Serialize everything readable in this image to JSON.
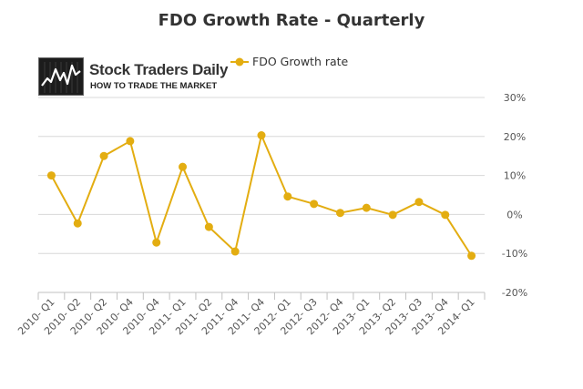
{
  "title": "FDO Growth Rate - Quarterly",
  "logo": {
    "name": "Stock Traders Daily",
    "tagline": "HOW TO TRADE THE MARKET",
    "icon": "chart-line-logo-icon"
  },
  "colors": {
    "series": "#e3ad11",
    "grid": "#d8d8d8",
    "axis_text": "#555555"
  },
  "chart_data": {
    "type": "line",
    "title": "FDO Growth Rate - Quarterly",
    "xlabel": "",
    "ylabel": "",
    "y_axis_side": "right",
    "ylim": [
      -20,
      30
    ],
    "yticks": [
      30,
      20,
      10,
      0,
      -10,
      -20
    ],
    "ytick_labels": [
      "30%",
      "20%",
      "10%",
      "0%",
      "-10%",
      "-20%"
    ],
    "grid": true,
    "legend_position": "top-center",
    "categories": [
      "2010- Q1",
      "2010- Q2",
      "2010- Q2",
      "2010- Q4",
      "2010- Q4",
      "2011- Q1",
      "2011- Q2",
      "2011- Q4",
      "2011- Q4",
      "2012- Q1",
      "2012- Q3",
      "2012- Q4",
      "2013- Q1",
      "2013- Q2",
      "2013- Q3",
      "2013- Q4",
      "2014- Q1"
    ],
    "series": [
      {
        "name": "FDO Growth rate",
        "values": [
          10,
          -2.3,
          15,
          18.8,
          -7.2,
          12.2,
          -3.2,
          -9.5,
          20.3,
          4.6,
          2.7,
          0.4,
          1.7,
          -0.1,
          3.2,
          -0.1,
          -10.6
        ]
      }
    ]
  }
}
